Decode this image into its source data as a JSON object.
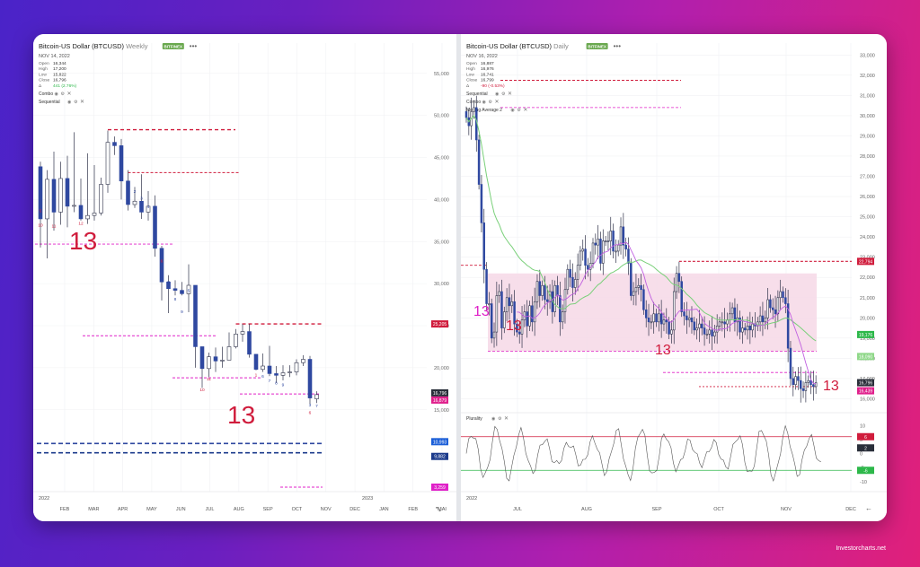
{
  "left_panel": {
    "title": "Bitcoin-US Dollar (BTCUSD)",
    "interval": "Weekly",
    "exchange_badge": "BITFINEX",
    "date": "NOV 14, 2022",
    "ohlc": [
      {
        "label": "Open",
        "value": "16,344"
      },
      {
        "label": "High",
        "value": "17,200"
      },
      {
        "label": "Low",
        "value": "15,822"
      },
      {
        "label": "Close",
        "value": "16,796"
      },
      {
        "label": "Δ",
        "value": "441 (2.76%)"
      }
    ],
    "indicators": [
      "Combo",
      "Sequential"
    ],
    "x_ticks": [
      "FEB",
      "MAR",
      "APR",
      "MAY",
      "JUN",
      "JUL",
      "AUG",
      "SEP",
      "OCT",
      "NOV",
      "DEC",
      "JAN",
      "FEB",
      "MAI"
    ],
    "year_labels": [
      "2022",
      "2023"
    ],
    "y_ticks": [
      "55,000",
      "50,000",
      "45,000",
      "40,000",
      "35,000",
      "30,000",
      "25,000",
      "20,000",
      "15,000"
    ],
    "price_tags": [
      {
        "text": "25,205",
        "color": "#d01c3c"
      },
      {
        "text": "16,796",
        "color": "#2a2f3a"
      },
      {
        "text": "16,879",
        "color": "#e0208c"
      },
      {
        "text": "10,993",
        "color": "#1c5fd8"
      },
      {
        "text": "9,882",
        "color": "#1c3b8c"
      },
      {
        "text": "3,259",
        "color": "#e020c8"
      }
    ],
    "big_labels": [
      "13",
      "13"
    ]
  },
  "right_panel": {
    "title": "Bitcoin-US Dollar (BTCUSD)",
    "interval": "Daily",
    "exchange_badge": "BITFINEX",
    "date": "NOV 16, 2022",
    "ohlc": [
      {
        "label": "Open",
        "value": "16,887"
      },
      {
        "label": "High",
        "value": "16,976"
      },
      {
        "label": "Low",
        "value": "16,741"
      },
      {
        "label": "Close",
        "value": "16,799"
      },
      {
        "label": "Δ",
        "value": "-90 (-0.53%)"
      }
    ],
    "indicators": [
      "Sequential",
      "Combo",
      "Moving Average 2"
    ],
    "x_ticks": [
      "JUL",
      "AUG",
      "SEP",
      "OCT",
      "NOV",
      "DEC"
    ],
    "year_label": "2022",
    "y_ticks": [
      "33,000",
      "32,000",
      "31,000",
      "30,000",
      "29,000",
      "28,000",
      "27,000",
      "26,000",
      "25,000",
      "24,000",
      "23,000",
      "22,000",
      "21,000",
      "20,000",
      "19,000",
      "18,000",
      "17,000",
      "16,000"
    ],
    "price_tags": [
      {
        "text": "22,794",
        "color": "#d01c3c"
      },
      {
        "text": "19,176",
        "color": "#2db84a"
      },
      {
        "text": "18,090",
        "color": "#8fd889"
      },
      {
        "text": "16,796",
        "color": "#2a2f3a"
      },
      {
        "text": "16,439",
        "color": "#e0208c"
      }
    ],
    "big_labels": [
      "13",
      "13",
      "13",
      "13"
    ],
    "oscillator": {
      "name": "Plurality",
      "y_ticks": [
        "10",
        "5",
        "0",
        "-5",
        "-10"
      ],
      "tags": [
        {
          "text": "6",
          "color": "#d01c3c"
        },
        {
          "text": "2",
          "color": "#2a2f3a"
        },
        {
          "text": "-6",
          "color": "#2db84a"
        }
      ]
    }
  },
  "watermark": "Investorcharts.net",
  "colors": {
    "bull": "#ffffff",
    "bear": "#2f48a0",
    "resistance": "#d01c3c",
    "support": "#e020c8",
    "ma_fast": "#c060e0",
    "ma_slow": "#7ad07a",
    "zone": "#f6d8e6"
  },
  "chart_data": [
    {
      "type": "candlestick",
      "title": "Bitcoin-US Dollar (BTCUSD) Weekly",
      "ylim": [
        9000,
        57000
      ],
      "candles": [
        [
          43900,
          44500,
          34300,
          37700
        ],
        [
          37700,
          43500,
          33000,
          42400
        ],
        [
          42400,
          45700,
          36300,
          38500
        ],
        [
          38500,
          44500,
          37000,
          42500
        ],
        [
          42500,
          45200,
          36700,
          39200
        ],
        [
          39200,
          48000,
          38500,
          39300
        ],
        [
          39300,
          42500,
          37500,
          37700
        ],
        [
          37700,
          45500,
          37100,
          38100
        ],
        [
          38100,
          44100,
          37500,
          38400
        ],
        [
          38400,
          42600,
          38100,
          41800
        ],
        [
          41800,
          48200,
          40800,
          46800
        ],
        [
          46800,
          47500,
          45300,
          46400
        ],
        [
          46400,
          47200,
          40000,
          42200
        ],
        [
          42200,
          43500,
          38700,
          39400
        ],
        [
          39400,
          41500,
          39000,
          39800
        ],
        [
          39800,
          43000,
          37700,
          38500
        ],
        [
          38500,
          41000,
          37500,
          39200
        ],
        [
          39200,
          40500,
          33200,
          34200
        ],
        [
          34200,
          34500,
          28000,
          30200
        ],
        [
          30200,
          31000,
          26500,
          29400
        ],
        [
          29400,
          30400,
          28600,
          29200
        ],
        [
          29200,
          30200,
          28600,
          28800
        ],
        [
          28800,
          32300,
          26600,
          29800
        ],
        [
          29800,
          29800,
          20000,
          22500
        ],
        [
          22500,
          22500,
          17600,
          19900
        ],
        [
          19900,
          21800,
          18900,
          21300
        ],
        [
          21300,
          22400,
          19500,
          20800
        ],
        [
          20800,
          22500,
          20000,
          20900
        ],
        [
          20900,
          24200,
          21200,
          22500
        ],
        [
          22500,
          24600,
          22300,
          24000
        ],
        [
          24000,
          25200,
          23100,
          24300
        ],
        [
          24300,
          25200,
          21200,
          21600
        ],
        [
          21600,
          21600,
          19700,
          19800
        ],
        [
          19800,
          21700,
          19500,
          20200
        ],
        [
          20200,
          22600,
          19000,
          19300
        ],
        [
          19300,
          20200,
          18200,
          19100
        ],
        [
          19100,
          20300,
          18500,
          19400
        ],
        [
          19400,
          20300,
          18900,
          19500
        ],
        [
          19500,
          21000,
          19100,
          20600
        ],
        [
          20600,
          21500,
          20200,
          21000
        ],
        [
          21000,
          21400,
          15700,
          16400
        ],
        [
          16300,
          17200,
          15800,
          16800
        ]
      ],
      "sequential_labels": [
        "13",
        "13"
      ]
    },
    {
      "type": "candlestick",
      "title": "Bitcoin-US Dollar (BTCUSD) Daily",
      "ylim": [
        15400,
        33500
      ],
      "series": [
        {
          "name": "Moving Average 2",
          "type": "line"
        }
      ],
      "close": [
        29900,
        29500,
        30200,
        30400,
        28800,
        26600,
        24700,
        22400,
        20700,
        20700,
        19000,
        19300,
        21100,
        21300,
        19500,
        20300,
        21000,
        20600,
        20800,
        19700,
        19300,
        19200,
        19900,
        20300,
        19600,
        20600,
        19800,
        20800,
        21800,
        21100,
        21600,
        20900,
        20800,
        21300,
        20300,
        21600,
        21100,
        19800,
        20300,
        21400,
        22400,
        22000,
        21500,
        21900,
        22600,
        23300,
        23400,
        22600,
        22400,
        22700,
        23700,
        23600,
        23900,
        22700,
        23800,
        23800,
        23800,
        24300,
        23300,
        23300,
        23600,
        24500,
        23600,
        23400,
        22700,
        21100,
        21300,
        21500,
        21600,
        21400,
        20400,
        20000,
        19800,
        19800,
        20200,
        19800,
        20200,
        19700,
        19900,
        19800,
        19200,
        19400,
        21300,
        22200,
        21800,
        20300,
        20100,
        19900,
        20000,
        19800,
        19400,
        19500,
        19700,
        19500,
        19200,
        19200,
        19400,
        19100,
        19300,
        19600,
        19800,
        19800,
        19700,
        19900,
        20200,
        20500,
        19800,
        20000,
        19300,
        19500,
        19400,
        19600,
        19400,
        19700,
        19600,
        19800,
        20100,
        19800,
        20000,
        20900,
        20500,
        20400,
        20200,
        21000,
        21300,
        21000,
        20700,
        18500,
        17000,
        16700,
        17100,
        16900,
        16500,
        16400,
        16800,
        16900,
        16700,
        16600,
        16800
      ],
      "sequential_labels": [
        "13",
        "13",
        "13",
        "13"
      ],
      "resistance": 22794,
      "support": 18090
    },
    {
      "type": "line",
      "title": "Plurality",
      "ylim": [
        -12,
        12
      ],
      "upper": 6,
      "lower": -6,
      "last": 2
    }
  ]
}
